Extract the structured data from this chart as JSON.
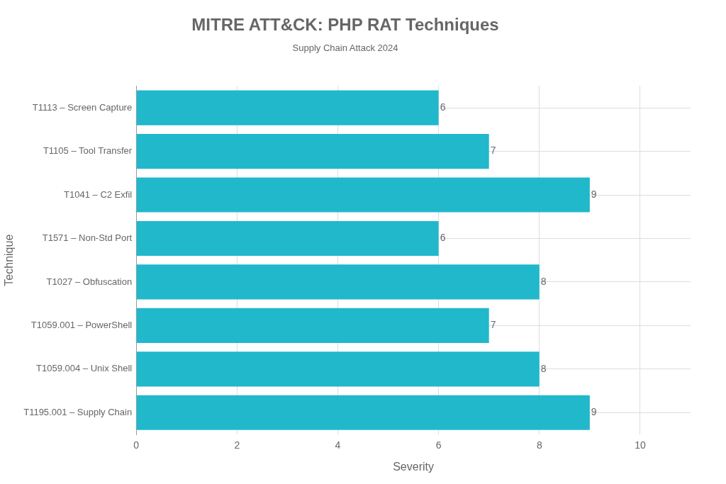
{
  "chart_data": {
    "type": "bar",
    "orientation": "horizontal",
    "title": "MITRE ATT&CK: PHP RAT Techniques",
    "subtitle": "Supply Chain Attack 2024",
    "xlabel": "Severity",
    "ylabel": "Technique",
    "categories": [
      "T1113 – Screen Capture",
      "T1105 – Tool Transfer",
      "T1041 – C2 Exfil",
      "T1571 – Non-Std Port",
      "T1027 – Obfuscation",
      "T1059.001 – PowerShell",
      "T1059.004 – Unix Shell",
      "T1195.001 – Supply Chain"
    ],
    "values": [
      6,
      7,
      9,
      6,
      8,
      7,
      8,
      9
    ],
    "color": "#21b8cc",
    "xlim": [
      0,
      11
    ],
    "xticks": [
      0,
      2,
      4,
      6,
      8,
      10
    ],
    "grid": true,
    "data_labels": true,
    "legend": false
  }
}
